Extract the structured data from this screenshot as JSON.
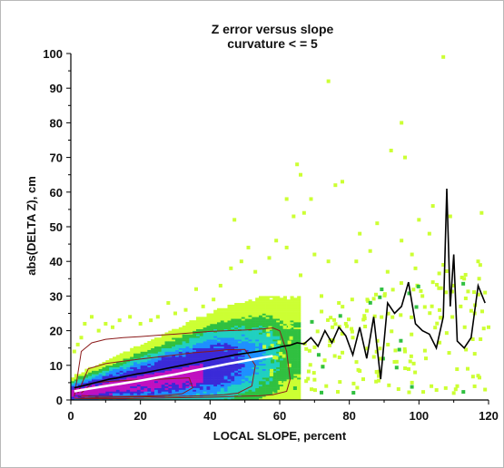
{
  "chart_data": {
    "type": "heatmap",
    "title": "Z error versus slope",
    "subtitle": "curvature < = 5",
    "xlabel": "LOCAL SLOPE, percent",
    "ylabel": "abs(DELTA Z), cm",
    "xlim": [
      0,
      120
    ],
    "ylim": [
      0,
      100
    ],
    "x_ticks": [
      "0",
      "20",
      "40",
      "60",
      "80",
      "100",
      "120"
    ],
    "y_ticks": [
      "0",
      "10",
      "20",
      "30",
      "40",
      "50",
      "60",
      "70",
      "80",
      "90",
      "100"
    ],
    "grid": false,
    "colors": {
      "density_high": "#c010c0",
      "density_mid_high": "#3a2ad8",
      "density_mid": "#1e90ff",
      "density_mid_low": "#20d0c0",
      "density_low": "#30c040",
      "density_sparse": "#ccff33",
      "mean_line": "#000000",
      "median_line": "#ffffff",
      "contour": "#8b1a1a"
    },
    "series": [
      {
        "kind": "mean",
        "x": [
          1,
          3,
          5,
          7,
          9,
          11,
          13,
          15,
          17,
          19,
          21,
          23,
          25,
          27,
          29,
          31,
          33,
          35,
          37,
          39,
          41,
          43,
          45,
          47,
          49,
          51,
          53,
          55,
          57,
          59,
          61,
          63,
          65,
          67,
          69,
          71,
          73,
          75,
          77,
          79,
          81,
          83,
          85,
          87,
          89,
          91,
          93,
          95,
          97,
          99,
          101,
          103,
          105,
          107,
          108,
          109,
          110,
          111,
          113,
          115,
          117,
          119
        ],
        "y": [
          3.5,
          4.0,
          4.5,
          5.0,
          5.5,
          6.0,
          6.3,
          6.7,
          7.1,
          7.5,
          7.8,
          8.2,
          8.6,
          9.0,
          9.4,
          9.8,
          10.2,
          10.6,
          11.0,
          11.4,
          11.8,
          12.2,
          12.6,
          13.0,
          13.3,
          13.6,
          13.9,
          14.2,
          14.6,
          15.0,
          15.5,
          15.8,
          16.5,
          16.2,
          18.0,
          15.5,
          20.0,
          16.5,
          21.0,
          18.5,
          13.0,
          21.0,
          12.0,
          24.0,
          6.0,
          28.0,
          25.0,
          27.0,
          34.0,
          22.0,
          20.0,
          19.0,
          15.0,
          24.0,
          61.0,
          27.0,
          42.0,
          17.0,
          15.0,
          18.0,
          33.0,
          28.0
        ]
      },
      {
        "kind": "median",
        "x": [
          1,
          5,
          10,
          15,
          20,
          25,
          30,
          35,
          40,
          45,
          50,
          55,
          58
        ],
        "y": [
          2.5,
          3.2,
          4.0,
          4.8,
          5.6,
          6.5,
          7.4,
          8.4,
          9.4,
          10.4,
          11.3,
          12.2,
          12.7
        ]
      }
    ],
    "contours": [
      {
        "level": "outer",
        "x": [
          1,
          3,
          6,
          10,
          15,
          20,
          25,
          30,
          35,
          40,
          45,
          50,
          55,
          58,
          60,
          62,
          63,
          62,
          58,
          54,
          50,
          46,
          40,
          34,
          28,
          22,
          16,
          10,
          6,
          3,
          1
        ],
        "y": [
          1,
          14,
          16.5,
          17.5,
          18,
          18.3,
          18.7,
          19,
          19.4,
          19.8,
          20,
          20.2,
          20.5,
          20.8,
          20,
          14,
          6,
          2.5,
          1.5,
          1.2,
          1.1,
          1.0,
          0.8,
          0.7,
          0.6,
          0.5,
          0.4,
          0.4,
          0.4,
          0.4,
          0.5
        ]
      },
      {
        "level": "middle",
        "x": [
          2,
          5,
          10,
          15,
          20,
          25,
          30,
          35,
          40,
          45,
          50,
          53,
          52,
          48,
          44,
          40,
          34,
          28,
          22,
          16,
          10,
          6,
          3,
          2
        ],
        "y": [
          2,
          9,
          10.5,
          11.2,
          11.8,
          12.4,
          13,
          13.6,
          14,
          14.5,
          14.6,
          10,
          4,
          2,
          1.5,
          1.3,
          1.1,
          1.0,
          0.9,
          0.8,
          0.7,
          0.7,
          0.8,
          1.2
        ]
      },
      {
        "level": "inner",
        "x": [
          3,
          6,
          10,
          15,
          20,
          25,
          30,
          34,
          35,
          32,
          28,
          24,
          20,
          15,
          10,
          6,
          3
        ],
        "y": [
          2,
          4.8,
          5.3,
          5.6,
          5.8,
          6.0,
          6.2,
          6.4,
          3.5,
          1.8,
          1.4,
          1.2,
          1.1,
          1.0,
          1.0,
          1.1,
          1.3
        ]
      }
    ],
    "outliers": [
      [
        74,
        92
      ],
      [
        95,
        80
      ],
      [
        96,
        70
      ],
      [
        92,
        72
      ],
      [
        66,
        65
      ],
      [
        65,
        68
      ],
      [
        78,
        63
      ],
      [
        76,
        62
      ],
      [
        69,
        58
      ],
      [
        62,
        58
      ],
      [
        64,
        53
      ],
      [
        67,
        54
      ],
      [
        47,
        52
      ],
      [
        118,
        54
      ],
      [
        104,
        56
      ],
      [
        100,
        52
      ],
      [
        109,
        53
      ],
      [
        103,
        48
      ],
      [
        98,
        42
      ],
      [
        88,
        51
      ],
      [
        95,
        46
      ],
      [
        86,
        43
      ],
      [
        83,
        48
      ],
      [
        107,
        39
      ],
      [
        117,
        40
      ],
      [
        113,
        35
      ],
      [
        99,
        38
      ],
      [
        91,
        37
      ],
      [
        82,
        40
      ],
      [
        110,
        33
      ],
      [
        119,
        31
      ],
      [
        116,
        25
      ],
      [
        112,
        27
      ],
      [
        104,
        34
      ],
      [
        101,
        30
      ],
      [
        120,
        21
      ],
      [
        107,
        99
      ],
      [
        114,
        9
      ],
      [
        117,
        7
      ],
      [
        98,
        5
      ],
      [
        111,
        4
      ],
      [
        110,
        2
      ],
      [
        119,
        3
      ],
      [
        102,
        12
      ],
      [
        96,
        14
      ],
      [
        93,
        11
      ],
      [
        88,
        8
      ],
      [
        84,
        6
      ],
      [
        79,
        22
      ],
      [
        81,
        18
      ],
      [
        72,
        30
      ],
      [
        74,
        40
      ],
      [
        77,
        28
      ],
      [
        70,
        42
      ],
      [
        66,
        36
      ],
      [
        62,
        44
      ],
      [
        59,
        46
      ],
      [
        57,
        41
      ],
      [
        53,
        37
      ],
      [
        51,
        44
      ],
      [
        49,
        40
      ],
      [
        46,
        38
      ],
      [
        43,
        33
      ],
      [
        41,
        29
      ],
      [
        38,
        27
      ],
      [
        36,
        32
      ],
      [
        33,
        26
      ],
      [
        30,
        25
      ],
      [
        28,
        28
      ],
      [
        25,
        24
      ],
      [
        23,
        23
      ],
      [
        20,
        22
      ],
      [
        17,
        24
      ],
      [
        14,
        23
      ],
      [
        12,
        21
      ],
      [
        10,
        22
      ],
      [
        8,
        20
      ],
      [
        6,
        24
      ],
      [
        4,
        22
      ],
      [
        3,
        18
      ],
      [
        2,
        16
      ],
      [
        1,
        14
      ]
    ]
  }
}
